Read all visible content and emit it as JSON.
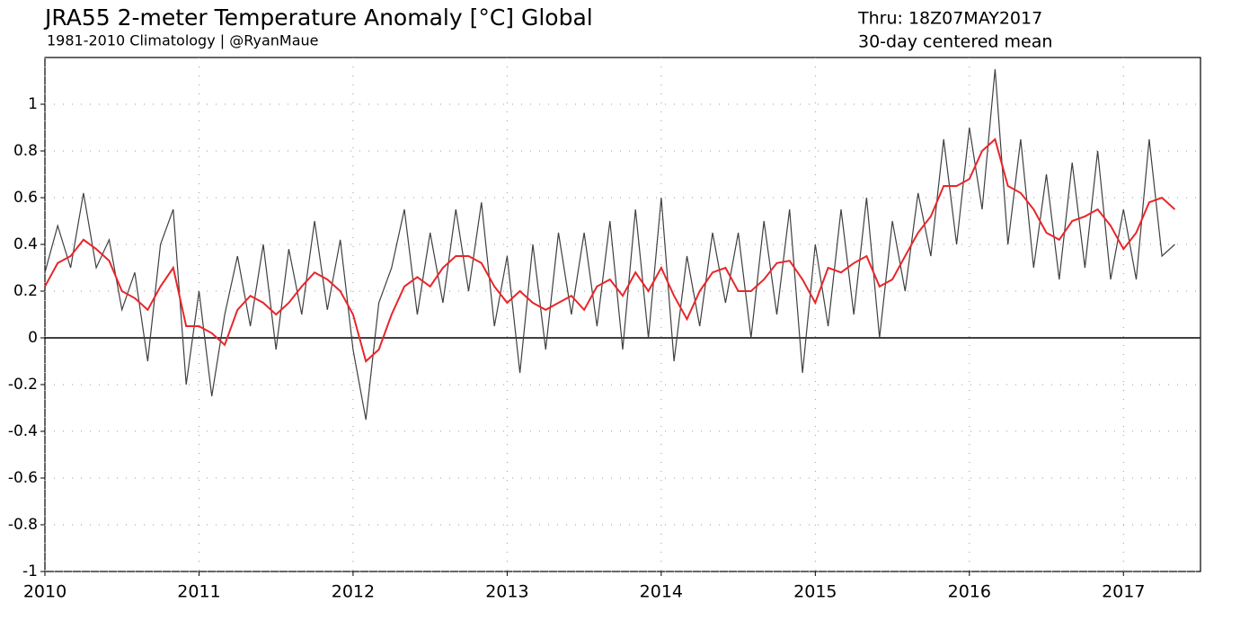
{
  "chart_data": {
    "type": "line",
    "title": "JRA55 2-meter Temperature Anomaly [°C] Global",
    "subtitle": "1981-2010 Climatology | @RyanMaue",
    "annotation": "Thru: 18Z07MAY2017",
    "x": [
      2010,
      2010.083,
      2010.167,
      2010.25,
      2010.333,
      2010.417,
      2010.5,
      2010.583,
      2010.667,
      2010.75,
      2010.833,
      2010.917,
      2011,
      2011.083,
      2011.167,
      2011.25,
      2011.333,
      2011.417,
      2011.5,
      2011.583,
      2011.667,
      2011.75,
      2011.833,
      2011.917,
      2012,
      2012.083,
      2012.167,
      2012.25,
      2012.333,
      2012.417,
      2012.5,
      2012.583,
      2012.667,
      2012.75,
      2012.833,
      2012.917,
      2013,
      2013.083,
      2013.167,
      2013.25,
      2013.333,
      2013.417,
      2013.5,
      2013.583,
      2013.667,
      2013.75,
      2013.833,
      2013.917,
      2014,
      2014.083,
      2014.167,
      2014.25,
      2014.333,
      2014.417,
      2014.5,
      2014.583,
      2014.667,
      2014.75,
      2014.833,
      2014.917,
      2015,
      2015.083,
      2015.167,
      2015.25,
      2015.333,
      2015.417,
      2015.5,
      2015.583,
      2015.667,
      2015.75,
      2015.833,
      2015.917,
      2016,
      2016.083,
      2016.167,
      2016.25,
      2016.333,
      2016.417,
      2016.5,
      2016.583,
      2016.667,
      2016.75,
      2016.833,
      2016.917,
      2017,
      2017.083,
      2017.167,
      2017.25,
      2017.333
    ],
    "series": [
      {
        "color": "#404040",
        "values": [
          0.28,
          0.48,
          0.3,
          0.62,
          0.3,
          0.42,
          0.12,
          0.28,
          -0.1,
          0.4,
          0.55,
          -0.2,
          0.2,
          -0.25,
          0.1,
          0.35,
          0.05,
          0.4,
          -0.05,
          0.38,
          0.1,
          0.5,
          0.12,
          0.42,
          -0.05,
          -0.35,
          0.15,
          0.3,
          0.55,
          0.1,
          0.45,
          0.15,
          0.55,
          0.2,
          0.58,
          0.05,
          0.35,
          -0.15,
          0.4,
          -0.05,
          0.45,
          0.1,
          0.45,
          0.05,
          0.5,
          -0.05,
          0.55,
          0,
          0.6,
          -0.1,
          0.35,
          0.05,
          0.45,
          0.15,
          0.45,
          0,
          0.5,
          0.1,
          0.55,
          -0.15,
          0.4,
          0.05,
          0.55,
          0.1,
          0.6,
          0,
          0.5,
          0.2,
          0.62,
          0.35,
          0.85,
          0.4,
          0.9,
          0.55,
          1.15,
          0.4,
          0.85,
          0.3,
          0.7,
          0.25,
          0.75,
          0.3,
          0.8,
          0.25,
          0.55,
          0.25,
          0.85,
          0.35,
          0.4
        ]
      },
      {
        "name": "30-day centered mean",
        "color": "#e8262a",
        "values": [
          0.22,
          0.32,
          0.35,
          0.42,
          0.38,
          0.33,
          0.2,
          0.17,
          0.12,
          0.22,
          0.3,
          0.05,
          0.05,
          0.02,
          -0.03,
          0.12,
          0.18,
          0.15,
          0.1,
          0.15,
          0.22,
          0.28,
          0.25,
          0.2,
          0.1,
          -0.1,
          -0.05,
          0.1,
          0.22,
          0.26,
          0.22,
          0.3,
          0.35,
          0.35,
          0.32,
          0.22,
          0.15,
          0.2,
          0.15,
          0.12,
          0.15,
          0.18,
          0.12,
          0.22,
          0.25,
          0.18,
          0.28,
          0.2,
          0.3,
          0.18,
          0.08,
          0.2,
          0.28,
          0.3,
          0.2,
          0.2,
          0.25,
          0.32,
          0.33,
          0.25,
          0.15,
          0.3,
          0.28,
          0.32,
          0.35,
          0.22,
          0.25,
          0.35,
          0.45,
          0.52,
          0.65,
          0.65,
          0.68,
          0.8,
          0.85,
          0.65,
          0.62,
          0.55,
          0.45,
          0.42,
          0.5,
          0.52,
          0.55,
          0.48,
          0.38,
          0.45,
          0.58,
          0.6,
          0.55
        ]
      }
    ],
    "xlim": [
      2010,
      2017.5
    ],
    "ylim": [
      -1,
      1.2
    ],
    "xticks": [
      2010,
      2011,
      2012,
      2013,
      2014,
      2015,
      2016,
      2017
    ],
    "yticks": [
      -1,
      -0.8,
      -0.6,
      -0.4,
      -0.2,
      0,
      0.2,
      0.4,
      0.6,
      0.8,
      1
    ],
    "grid": true
  }
}
